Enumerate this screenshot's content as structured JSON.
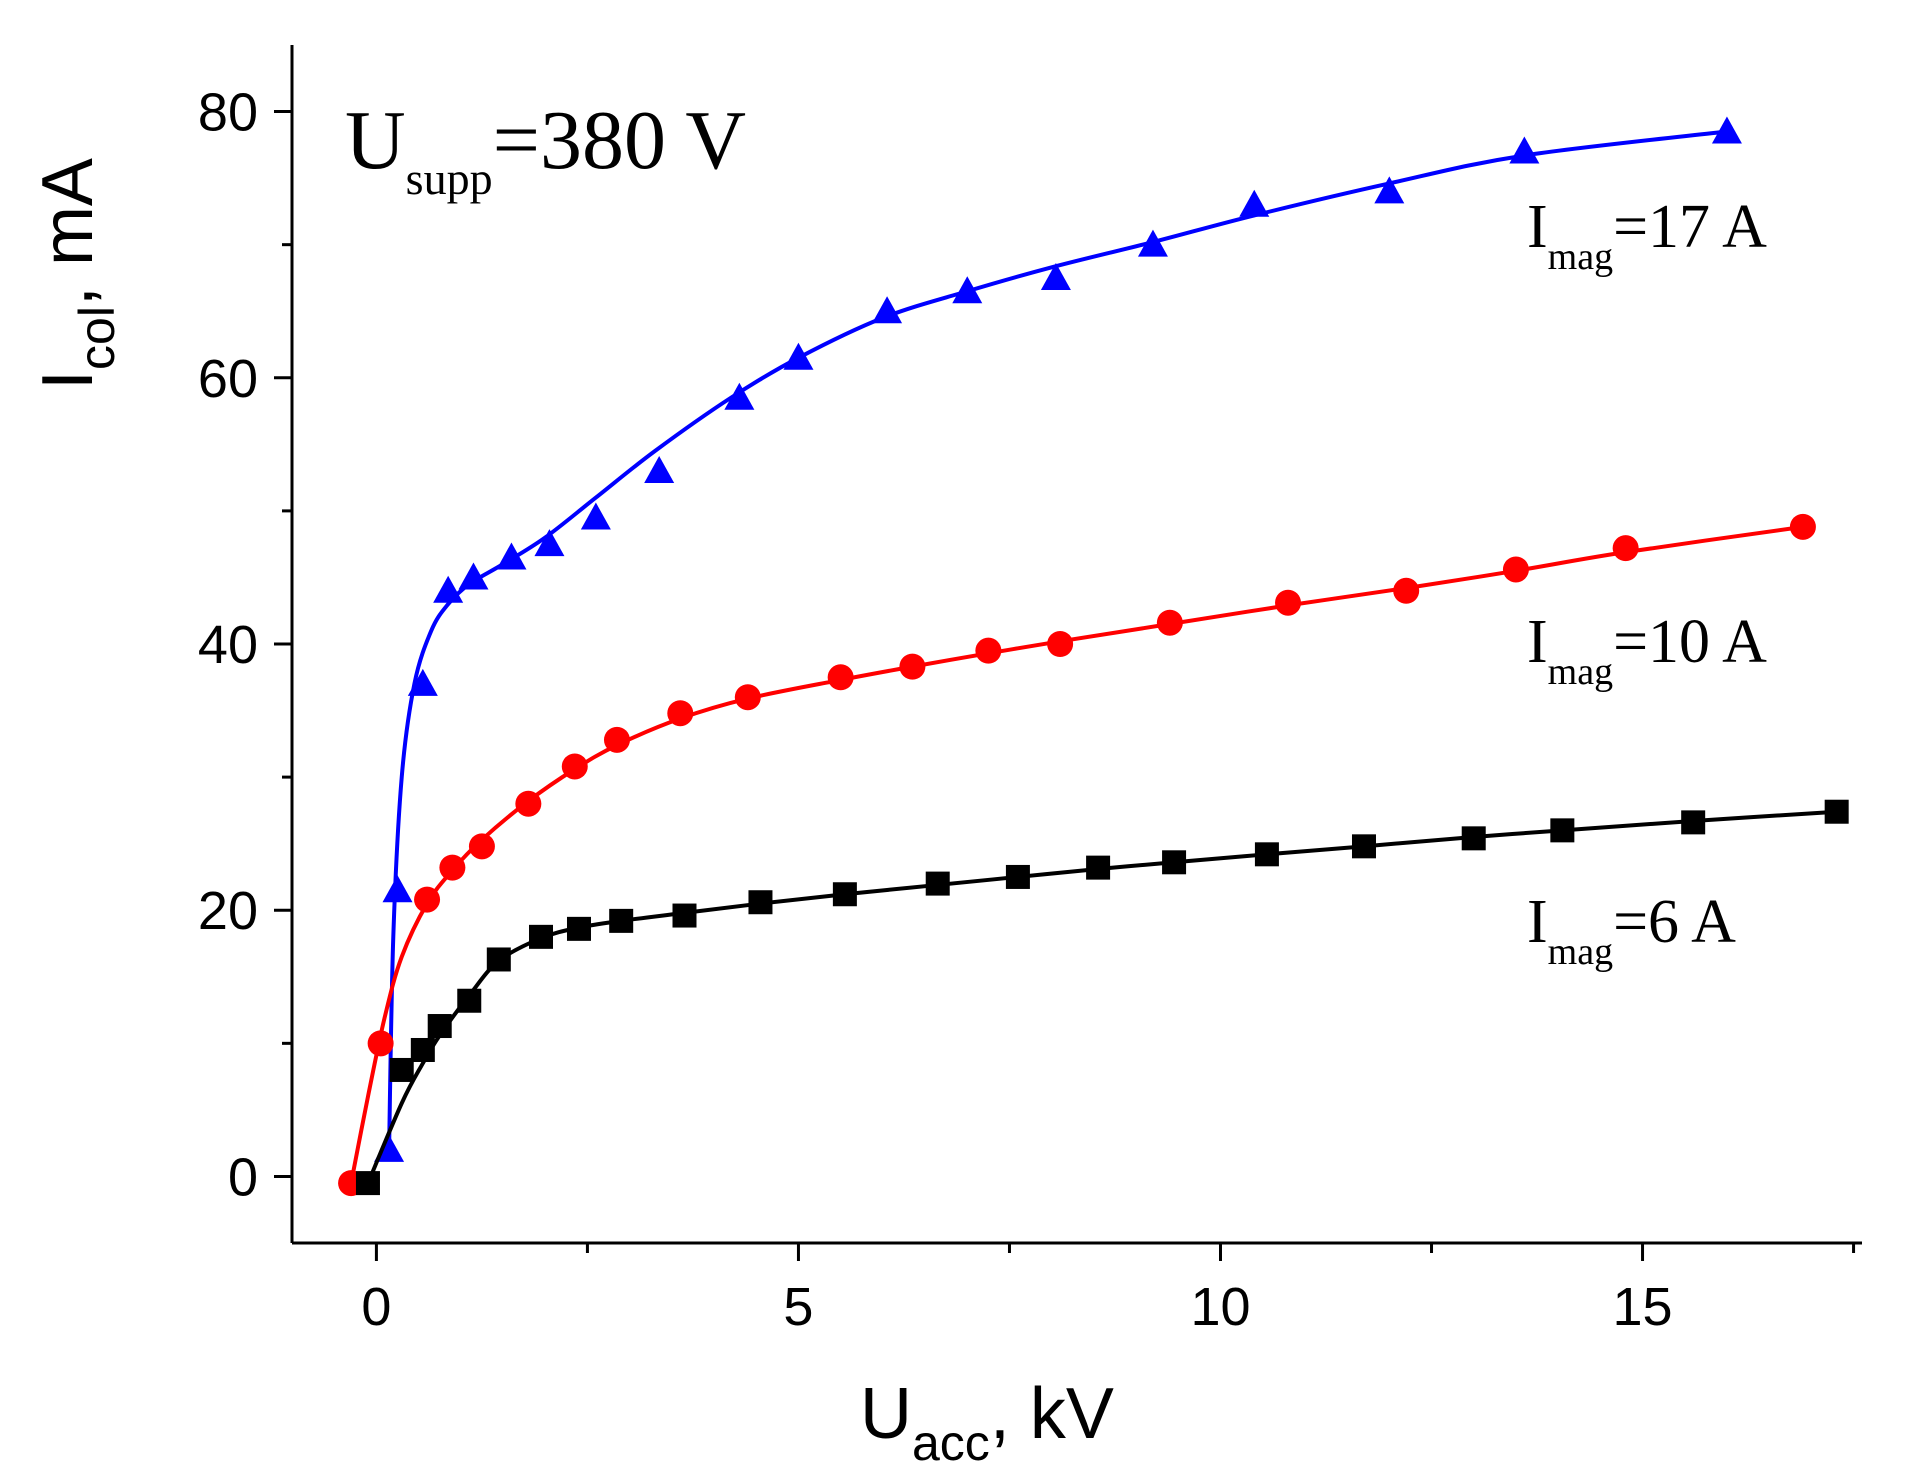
{
  "chart_data": {
    "type": "line",
    "title": "",
    "annotation": {
      "main": "U",
      "sub": "supp",
      "rest": "=380 V"
    },
    "xlabel": {
      "main": "U",
      "sub": "acc",
      "rest": ", kV"
    },
    "ylabel": {
      "main": "I",
      "sub": "col",
      "rest": ", mA"
    },
    "xlim": [
      -1,
      17.6
    ],
    "ylim": [
      -5,
      85
    ],
    "xticks": [
      0,
      5,
      10,
      15
    ],
    "xtick_labels": [
      "0",
      "5",
      "10",
      "15"
    ],
    "xminor": [
      2.5,
      7.5,
      12.5,
      17.5
    ],
    "yticks": [
      0,
      20,
      40,
      60,
      80
    ],
    "ytick_labels": [
      "0",
      "20",
      "40",
      "60",
      "80"
    ],
    "yminor": [
      10,
      30,
      50,
      70
    ],
    "grid": false,
    "series": [
      {
        "name": "I_mag=17 A",
        "label": {
          "main": "I",
          "sub": "mag",
          "rest": "=17 A"
        },
        "color": "#0000ff",
        "marker": "triangle",
        "x": [
          0.15,
          0.25,
          0.55,
          0.85,
          1.15,
          1.6,
          2.05,
          2.6,
          3.35,
          4.3,
          5.0,
          6.05,
          7.0,
          8.05,
          9.2,
          10.4,
          12.0,
          13.6,
          16.0
        ],
        "y": [
          2,
          21.5,
          37,
          44,
          45,
          46.5,
          47.5,
          49.5,
          53,
          58.5,
          61.5,
          65,
          66.5,
          67.5,
          70,
          73,
          74,
          77,
          78.5
        ],
        "fit_x": [
          0.15,
          0.2,
          0.3,
          0.45,
          0.65,
          0.85,
          1.1,
          1.5,
          2.0,
          2.6,
          3.3,
          4.2,
          5.0,
          6.0,
          7.0,
          8.0,
          9.2,
          10.4,
          12.0,
          13.6,
          16.0
        ],
        "fit_y": [
          2,
          18,
          30,
          37,
          41,
          43,
          44.5,
          46,
          48,
          51,
          54.5,
          58.5,
          61.5,
          64.5,
          66.5,
          68.3,
          70.2,
          72.2,
          74.6,
          76.7,
          78.5
        ]
      },
      {
        "name": "I_mag=10 A",
        "label": {
          "main": "I",
          "sub": "mag",
          "rest": "=10 A"
        },
        "color": "#ff0000",
        "marker": "circle",
        "x": [
          -0.3,
          0.05,
          0.6,
          0.9,
          1.25,
          1.8,
          2.35,
          2.85,
          3.6,
          4.4,
          5.5,
          6.35,
          7.25,
          8.1,
          9.4,
          10.8,
          12.2,
          13.5,
          14.8,
          16.9
        ],
        "y": [
          -0.5,
          10,
          20.8,
          23.2,
          24.8,
          28,
          30.8,
          32.8,
          34.8,
          36,
          37.5,
          38.3,
          39.5,
          40,
          41.6,
          43.1,
          44,
          45.6,
          47.2,
          48.8
        ],
        "fit_x": [
          -0.3,
          -0.1,
          0.1,
          0.3,
          0.6,
          0.9,
          1.25,
          1.8,
          2.35,
          2.85,
          3.6,
          4.4,
          5.5,
          6.35,
          7.25,
          8.1,
          9.4,
          10.8,
          12.2,
          13.5,
          14.8,
          16.9
        ],
        "fit_y": [
          -0.5,
          6,
          12,
          16.5,
          20.5,
          23,
          25.3,
          28.2,
          30.6,
          32.4,
          34.4,
          35.9,
          37.3,
          38.3,
          39.3,
          40.2,
          41.5,
          42.9,
          44.2,
          45.5,
          46.9,
          48.8
        ]
      },
      {
        "name": "I_mag=6 A",
        "label": {
          "main": "I",
          "sub": "mag",
          "rest": "=6 A"
        },
        "color": "#000000",
        "marker": "square",
        "x": [
          -0.1,
          0.3,
          0.55,
          0.75,
          1.1,
          1.45,
          1.95,
          2.4,
          2.9,
          3.65,
          4.55,
          5.55,
          6.65,
          7.6,
          8.55,
          9.45,
          10.55,
          11.7,
          13.0,
          14.05,
          15.6,
          17.3
        ],
        "y": [
          -0.5,
          8,
          9.5,
          11.3,
          13.2,
          16.3,
          18,
          18.6,
          19.2,
          19.6,
          20.6,
          21.2,
          22,
          22.5,
          23.2,
          23.6,
          24.2,
          24.8,
          25.4,
          26,
          26.6,
          27.4
        ],
        "fit_x": [
          -0.1,
          0.3,
          0.55,
          0.75,
          1.1,
          1.45,
          1.95,
          2.4,
          2.9,
          3.65,
          4.55,
          5.55,
          6.65,
          7.6,
          8.55,
          9.45,
          10.55,
          11.7,
          13.0,
          14.05,
          15.6,
          17.3
        ],
        "fit_y": [
          -0.5,
          5.5,
          8.5,
          10.6,
          13.6,
          16.2,
          17.9,
          18.7,
          19.2,
          19.8,
          20.5,
          21.2,
          21.9,
          22.5,
          23.1,
          23.6,
          24.2,
          24.8,
          25.5,
          26.0,
          26.7,
          27.4
        ]
      }
    ]
  }
}
